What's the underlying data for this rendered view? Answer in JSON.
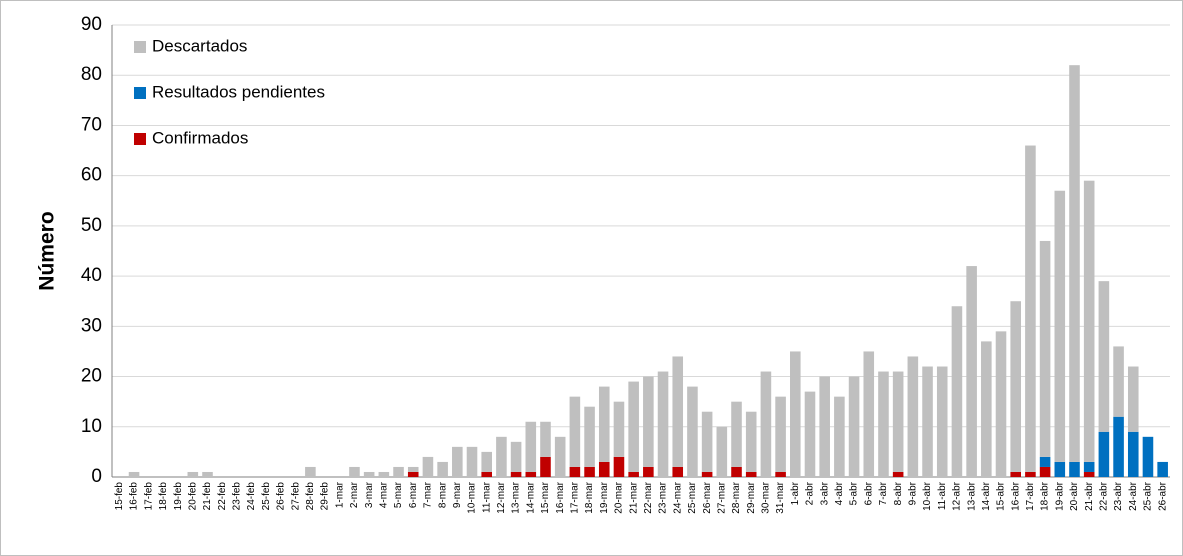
{
  "chart_data": {
    "type": "stacked-bar",
    "y_label": "Número",
    "categories": [
      "15-feb",
      "16-feb",
      "17-feb",
      "18-feb",
      "19-feb",
      "20-feb",
      "21-feb",
      "22-feb",
      "23-feb",
      "24-feb",
      "25-feb",
      "26-feb",
      "27-feb",
      "28-feb",
      "29-feb",
      "1-mar",
      "2-mar",
      "3-mar",
      "4-mar",
      "5-mar",
      "6-mar",
      "7-mar",
      "8-mar",
      "9-mar",
      "10-mar",
      "11-mar",
      "12-mar",
      "13-mar",
      "14-mar",
      "15-mar",
      "16-mar",
      "17-mar",
      "18-mar",
      "19-mar",
      "20-mar",
      "21-mar",
      "22-mar",
      "23-mar",
      "24-mar",
      "25-mar",
      "26-mar",
      "27-mar",
      "28-mar",
      "29-mar",
      "30-mar",
      "31-mar",
      "1-abr",
      "2-abr",
      "3-abr",
      "4-abr",
      "5-abr",
      "6-abr",
      "7-abr",
      "8-abr",
      "9-abr",
      "10-abr",
      "11-abr",
      "12-abr",
      "13-abr",
      "14-abr",
      "15-abr",
      "16-abr",
      "17-abr",
      "18-abr",
      "19-abr",
      "20-abr",
      "21-abr",
      "22-abr",
      "23-abr",
      "24-abr",
      "25-abr",
      "26-abr"
    ],
    "series": [
      {
        "name": "Descartados",
        "color": "#bfbfbf",
        "values": [
          0,
          1,
          0,
          0,
          0,
          1,
          1,
          0,
          0,
          0,
          0,
          0,
          0,
          2,
          0,
          0,
          2,
          1,
          1,
          2,
          1,
          4,
          3,
          6,
          6,
          4,
          8,
          6,
          10,
          7,
          8,
          14,
          12,
          15,
          11,
          18,
          18,
          21,
          22,
          18,
          12,
          10,
          13,
          12,
          21,
          15,
          25,
          17,
          20,
          16,
          20,
          25,
          21,
          20,
          24,
          22,
          22,
          34,
          42,
          27,
          29,
          34,
          65,
          43,
          54,
          79,
          56,
          30,
          14,
          13,
          0,
          0
        ]
      },
      {
        "name": "Resultados pendientes",
        "color": "#0070c0",
        "values": [
          0,
          0,
          0,
          0,
          0,
          0,
          0,
          0,
          0,
          0,
          0,
          0,
          0,
          0,
          0,
          0,
          0,
          0,
          0,
          0,
          0,
          0,
          0,
          0,
          0,
          0,
          0,
          0,
          0,
          0,
          0,
          0,
          0,
          0,
          0,
          0,
          0,
          0,
          0,
          0,
          0,
          0,
          0,
          0,
          0,
          0,
          0,
          0,
          0,
          0,
          0,
          0,
          0,
          0,
          0,
          0,
          0,
          0,
          0,
          0,
          0,
          0,
          0,
          2,
          3,
          3,
          2,
          9,
          12,
          9,
          8,
          3
        ]
      },
      {
        "name": "Confirmados",
        "color": "#c00000",
        "values": [
          0,
          0,
          0,
          0,
          0,
          0,
          0,
          0,
          0,
          0,
          0,
          0,
          0,
          0,
          0,
          0,
          0,
          0,
          0,
          0,
          1,
          0,
          0,
          0,
          0,
          1,
          0,
          1,
          1,
          4,
          0,
          2,
          2,
          3,
          4,
          1,
          2,
          0,
          2,
          0,
          1,
          0,
          2,
          1,
          0,
          1,
          0,
          0,
          0,
          0,
          0,
          0,
          0,
          1,
          0,
          0,
          0,
          0,
          0,
          0,
          0,
          1,
          1,
          2,
          0,
          0,
          1,
          0,
          0,
          0,
          0,
          0
        ]
      }
    ],
    "ylim": [
      0,
      90
    ],
    "yticks": [
      0,
      10,
      20,
      30,
      40,
      50,
      60,
      70,
      80,
      90
    ],
    "grid": true,
    "legend": "top-left"
  }
}
